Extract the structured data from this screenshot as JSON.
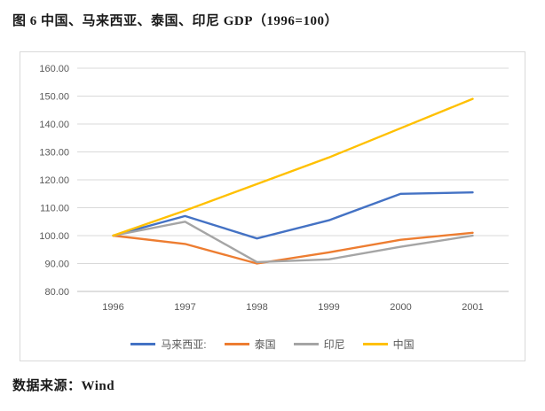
{
  "title": "图 6 中国、马来西亚、泰国、印尼 GDP（1996=100）",
  "source": "数据来源：Wind",
  "chart_data": {
    "type": "line",
    "title": "图 6 中国、马来西亚、泰国、印尼 GDP（1996=100）",
    "categories": [
      "1996",
      "1997",
      "1998",
      "1999",
      "2000",
      "2001"
    ],
    "series": [
      {
        "name": "马来西亚:",
        "color": "#4472C4",
        "values": [
          100,
          107,
          99,
          105.5,
          115,
          115.5
        ]
      },
      {
        "name": "泰国",
        "color": "#ED7D31",
        "values": [
          100,
          97,
          90,
          94,
          98.5,
          101
        ]
      },
      {
        "name": "印尼",
        "color": "#A5A5A5",
        "values": [
          100,
          105,
          90.5,
          91.5,
          96,
          100
        ]
      },
      {
        "name": "中国",
        "color": "#FFC000",
        "values": [
          100,
          109,
          118.5,
          128,
          138.5,
          149
        ]
      }
    ],
    "ylim": [
      80,
      160
    ],
    "y_ticks": [
      80,
      90,
      100,
      110,
      120,
      130,
      140,
      150,
      160
    ],
    "y_tick_format": "0.00",
    "grid": "horizontal",
    "legend_position": "bottom",
    "axis_color": "#bfbfbf",
    "grid_color": "#d9d9d9"
  }
}
